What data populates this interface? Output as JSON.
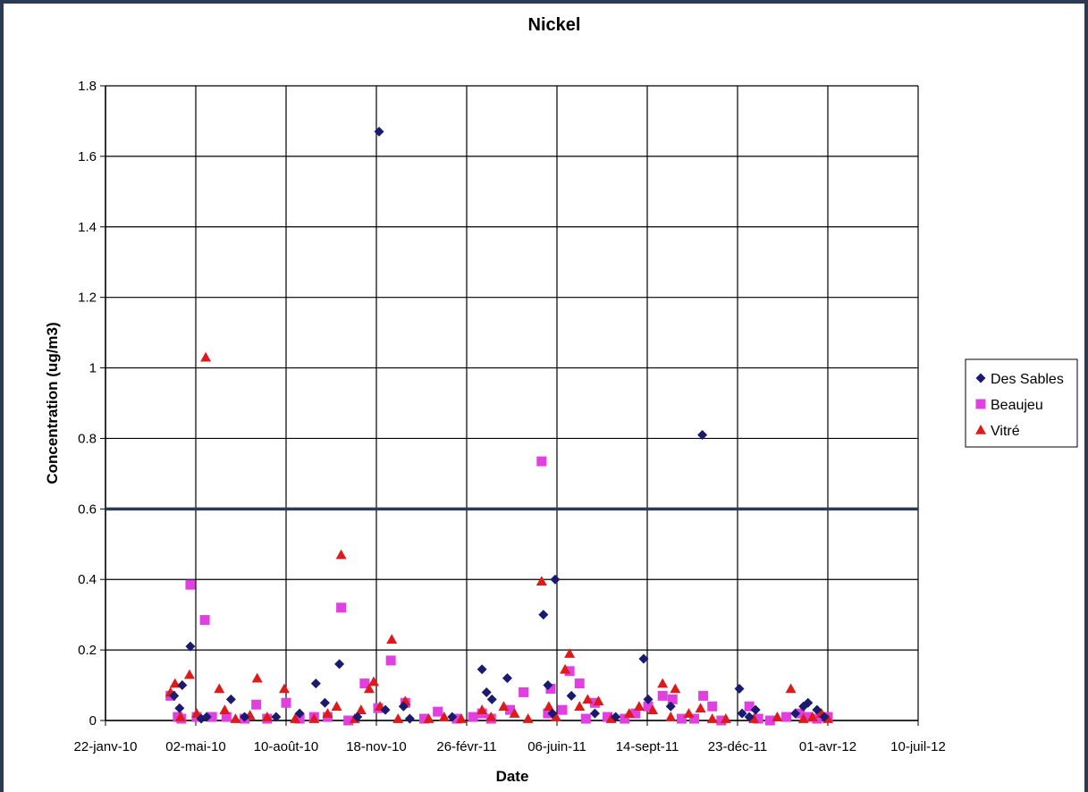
{
  "chart_data": {
    "type": "scatter",
    "title": "Nickel",
    "xlabel": "Date",
    "ylabel": "Concentration (ug/m3)",
    "ylim": [
      0,
      1.8
    ],
    "yticks": [
      "0",
      "0.2",
      "0.4",
      "0.6",
      "0.8",
      "1",
      "1.2",
      "1.4",
      "1.6",
      "1.8"
    ],
    "xlim": [
      "2010-01-22",
      "2012-07-10"
    ],
    "xticks": [
      "22-janv-10",
      "02-mai-10",
      "10-août-10",
      "18-nov-10",
      "26-févr-11",
      "06-juin-11",
      "14-sept-11",
      "23-déc-11",
      "01-avr-12",
      "10-juil-12"
    ],
    "grid": true,
    "legend_position": "right",
    "reference_line": {
      "y": 0.6,
      "color": "#2b3a55"
    },
    "series": [
      {
        "name": "Des Sables",
        "marker": "diamond",
        "color": "#1a1a6e",
        "points": [
          [
            "2010-04-08",
            0.07
          ],
          [
            "2010-04-14",
            0.035
          ],
          [
            "2010-04-17",
            0.1
          ],
          [
            "2010-04-26",
            0.21
          ],
          [
            "2010-05-08",
            0.005
          ],
          [
            "2010-05-14",
            0.01
          ],
          [
            "2010-06-10",
            0.06
          ],
          [
            "2010-06-25",
            0.01
          ],
          [
            "2010-07-30",
            0.01
          ],
          [
            "2010-08-25",
            0.02
          ],
          [
            "2010-09-12",
            0.105
          ],
          [
            "2010-09-22",
            0.05
          ],
          [
            "2010-10-08",
            0.16
          ],
          [
            "2010-10-28",
            0.01
          ],
          [
            "2010-11-21",
            1.67
          ],
          [
            "2010-11-28",
            0.03
          ],
          [
            "2010-12-18",
            0.04
          ],
          [
            "2010-12-25",
            0.005
          ],
          [
            "2011-02-10",
            0.01
          ],
          [
            "2011-03-15",
            0.145
          ],
          [
            "2011-03-20",
            0.08
          ],
          [
            "2011-03-26",
            0.06
          ],
          [
            "2011-04-12",
            0.12
          ],
          [
            "2011-05-22",
            0.3
          ],
          [
            "2011-05-27",
            0.1
          ],
          [
            "2011-06-01",
            0.02
          ],
          [
            "2011-06-04",
            0.4
          ],
          [
            "2011-06-22",
            0.07
          ],
          [
            "2011-07-18",
            0.02
          ],
          [
            "2011-08-10",
            0.01
          ],
          [
            "2011-09-10",
            0.175
          ],
          [
            "2011-09-15",
            0.06
          ],
          [
            "2011-10-10",
            0.04
          ],
          [
            "2011-11-14",
            0.81
          ],
          [
            "2011-12-25",
            0.09
          ],
          [
            "2011-12-28",
            0.02
          ],
          [
            "2012-01-05",
            0.01
          ],
          [
            "2012-01-12",
            0.03
          ],
          [
            "2012-02-25",
            0.02
          ],
          [
            "2012-03-05",
            0.04
          ],
          [
            "2012-03-10",
            0.05
          ],
          [
            "2012-03-20",
            0.03
          ],
          [
            "2012-03-28",
            0.01
          ]
        ]
      },
      {
        "name": "Beaujeu",
        "marker": "square",
        "color": "#e040e0",
        "points": [
          [
            "2010-04-04",
            0.07
          ],
          [
            "2010-04-12",
            0.01
          ],
          [
            "2010-04-16",
            0.005
          ],
          [
            "2010-04-26",
            0.385
          ],
          [
            "2010-05-03",
            0.01
          ],
          [
            "2010-05-12",
            0.285
          ],
          [
            "2010-05-20",
            0.01
          ],
          [
            "2010-06-05",
            0.01
          ],
          [
            "2010-06-25",
            0.005
          ],
          [
            "2010-07-08",
            0.045
          ],
          [
            "2010-07-20",
            0.005
          ],
          [
            "2010-08-10",
            0.05
          ],
          [
            "2010-08-25",
            0.005
          ],
          [
            "2010-09-10",
            0.01
          ],
          [
            "2010-09-25",
            0.01
          ],
          [
            "2010-10-10",
            0.32
          ],
          [
            "2010-10-18",
            0.0
          ],
          [
            "2010-11-05",
            0.105
          ],
          [
            "2010-11-20",
            0.035
          ],
          [
            "2010-12-04",
            0.17
          ],
          [
            "2010-12-20",
            0.05
          ],
          [
            "2011-01-10",
            0.005
          ],
          [
            "2011-01-25",
            0.025
          ],
          [
            "2011-02-15",
            0.005
          ],
          [
            "2011-03-05",
            0.01
          ],
          [
            "2011-03-15",
            0.02
          ],
          [
            "2011-03-25",
            0.005
          ],
          [
            "2011-04-15",
            0.03
          ],
          [
            "2011-04-30",
            0.08
          ],
          [
            "2011-05-20",
            0.735
          ],
          [
            "2011-05-27",
            0.02
          ],
          [
            "2011-05-30",
            0.09
          ],
          [
            "2011-06-12",
            0.03
          ],
          [
            "2011-06-20",
            0.14
          ],
          [
            "2011-07-01",
            0.105
          ],
          [
            "2011-07-08",
            0.005
          ],
          [
            "2011-07-18",
            0.05
          ],
          [
            "2011-08-01",
            0.01
          ],
          [
            "2011-08-20",
            0.005
          ],
          [
            "2011-09-01",
            0.02
          ],
          [
            "2011-09-15",
            0.04
          ],
          [
            "2011-10-01",
            0.07
          ],
          [
            "2011-10-12",
            0.06
          ],
          [
            "2011-10-22",
            0.005
          ],
          [
            "2011-11-05",
            0.005
          ],
          [
            "2011-11-15",
            0.07
          ],
          [
            "2011-11-25",
            0.04
          ],
          [
            "2011-12-05",
            0.0
          ],
          [
            "2012-01-05",
            0.04
          ],
          [
            "2012-01-15",
            0.005
          ],
          [
            "2012-01-28",
            0.0
          ],
          [
            "2012-02-15",
            0.01
          ],
          [
            "2012-03-01",
            0.02
          ],
          [
            "2012-03-10",
            0.01
          ],
          [
            "2012-03-20",
            0.005
          ],
          [
            "2012-04-01",
            0.01
          ]
        ]
      },
      {
        "name": "Vitré",
        "marker": "triangle",
        "color": "#dd1b1b",
        "points": [
          [
            "2010-04-04",
            0.08
          ],
          [
            "2010-04-09",
            0.105
          ],
          [
            "2010-04-15",
            0.01
          ],
          [
            "2010-04-25",
            0.13
          ],
          [
            "2010-05-03",
            0.02
          ],
          [
            "2010-05-13",
            1.03
          ],
          [
            "2010-05-28",
            0.09
          ],
          [
            "2010-06-03",
            0.03
          ],
          [
            "2010-06-15",
            0.005
          ],
          [
            "2010-07-01",
            0.015
          ],
          [
            "2010-07-09",
            0.12
          ],
          [
            "2010-07-20",
            0.01
          ],
          [
            "2010-08-08",
            0.09
          ],
          [
            "2010-08-20",
            0.005
          ],
          [
            "2010-09-10",
            0.005
          ],
          [
            "2010-09-25",
            0.02
          ],
          [
            "2010-10-05",
            0.04
          ],
          [
            "2010-10-10",
            0.47
          ],
          [
            "2010-10-25",
            0.005
          ],
          [
            "2010-11-01",
            0.03
          ],
          [
            "2010-11-10",
            0.09
          ],
          [
            "2010-11-15",
            0.11
          ],
          [
            "2010-11-22",
            0.04
          ],
          [
            "2010-12-05",
            0.23
          ],
          [
            "2010-12-12",
            0.005
          ],
          [
            "2010-12-20",
            0.055
          ],
          [
            "2011-01-15",
            0.005
          ],
          [
            "2011-02-01",
            0.01
          ],
          [
            "2011-02-20",
            0.005
          ],
          [
            "2011-03-15",
            0.03
          ],
          [
            "2011-03-25",
            0.01
          ],
          [
            "2011-04-08",
            0.04
          ],
          [
            "2011-04-20",
            0.02
          ],
          [
            "2011-05-05",
            0.005
          ],
          [
            "2011-05-20",
            0.395
          ],
          [
            "2011-05-28",
            0.04
          ],
          [
            "2011-06-05",
            0.01
          ],
          [
            "2011-06-15",
            0.145
          ],
          [
            "2011-06-20",
            0.19
          ],
          [
            "2011-07-01",
            0.04
          ],
          [
            "2011-07-10",
            0.06
          ],
          [
            "2011-07-22",
            0.055
          ],
          [
            "2011-08-05",
            0.005
          ],
          [
            "2011-08-25",
            0.02
          ],
          [
            "2011-09-05",
            0.04
          ],
          [
            "2011-09-20",
            0.03
          ],
          [
            "2011-10-01",
            0.105
          ],
          [
            "2011-10-10",
            0.01
          ],
          [
            "2011-10-15",
            0.09
          ],
          [
            "2011-10-30",
            0.02
          ],
          [
            "2011-11-12",
            0.035
          ],
          [
            "2011-11-25",
            0.005
          ],
          [
            "2011-12-10",
            0.005
          ],
          [
            "2012-01-10",
            0.005
          ],
          [
            "2012-02-05",
            0.01
          ],
          [
            "2012-02-20",
            0.09
          ],
          [
            "2012-03-05",
            0.005
          ],
          [
            "2012-03-15",
            0.01
          ],
          [
            "2012-03-25",
            0.02
          ],
          [
            "2012-04-01",
            0.005
          ]
        ]
      }
    ]
  }
}
